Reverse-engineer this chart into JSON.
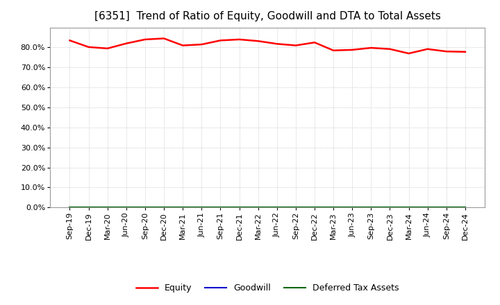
{
  "title": "[6351]  Trend of Ratio of Equity, Goodwill and DTA to Total Assets",
  "x_labels": [
    "Sep-19",
    "Dec-19",
    "Mar-20",
    "Jun-20",
    "Sep-20",
    "Dec-20",
    "Mar-21",
    "Jun-21",
    "Sep-21",
    "Dec-21",
    "Mar-22",
    "Jun-22",
    "Sep-22",
    "Dec-22",
    "Mar-23",
    "Jun-23",
    "Sep-23",
    "Dec-23",
    "Mar-24",
    "Jun-24",
    "Sep-24",
    "Dec-24"
  ],
  "equity": [
    83.5,
    80.2,
    79.5,
    82.0,
    84.0,
    84.5,
    81.0,
    81.5,
    83.5,
    84.0,
    83.2,
    81.8,
    81.0,
    82.5,
    78.5,
    78.8,
    79.8,
    79.2,
    77.0,
    79.2,
    78.0,
    77.8
  ],
  "goodwill": [
    0.0,
    0.0,
    0.0,
    0.0,
    0.0,
    0.0,
    0.0,
    0.0,
    0.0,
    0.0,
    0.0,
    0.0,
    0.0,
    0.0,
    0.0,
    0.0,
    0.0,
    0.0,
    0.0,
    0.0,
    0.0,
    0.0
  ],
  "dta": [
    0.0,
    0.0,
    0.0,
    0.0,
    0.0,
    0.0,
    0.0,
    0.0,
    0.0,
    0.0,
    0.0,
    0.0,
    0.0,
    0.0,
    0.0,
    0.0,
    0.0,
    0.0,
    0.0,
    0.0,
    0.0,
    0.0
  ],
  "equity_color": "#ff0000",
  "goodwill_color": "#0000cc",
  "dta_color": "#006600",
  "ylim": [
    0,
    90
  ],
  "yticks": [
    0,
    10,
    20,
    30,
    40,
    50,
    60,
    70,
    80
  ],
  "background_color": "#ffffff",
  "plot_bg_color": "#ffffff",
  "grid_color": "#bbbbbb",
  "title_fontsize": 11,
  "tick_fontsize": 8,
  "legend_labels": [
    "Equity",
    "Goodwill",
    "Deferred Tax Assets"
  ]
}
